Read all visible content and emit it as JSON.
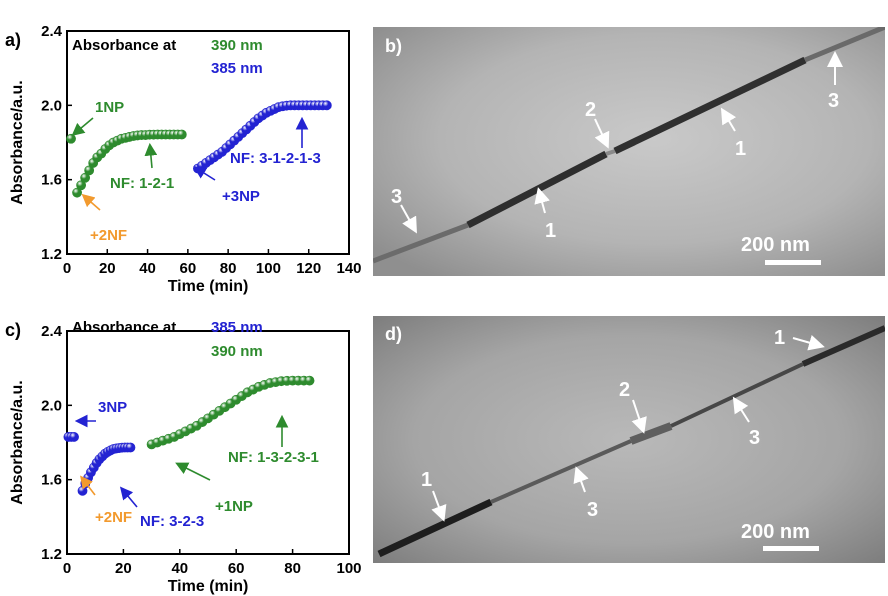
{
  "colors": {
    "green": "#2e8b2e",
    "blue": "#2323d2",
    "orange": "#f29a2e",
    "axis": "#000000",
    "white": "#ffffff"
  },
  "chart_data": [
    {
      "type": "scatter",
      "panel_label": "a)",
      "xlabel": "Time (min)",
      "ylabel": "Absorbance/a.u.",
      "xlim": [
        0,
        140
      ],
      "ylim": [
        1.2,
        2.4
      ],
      "xticks": [
        0,
        20,
        40,
        60,
        80,
        100,
        120,
        140
      ],
      "yticks": [
        1.2,
        1.6,
        2.0,
        2.4
      ],
      "legend": {
        "title": "Absorbance at",
        "entries": [
          {
            "text": "390 nm",
            "color": "#2e8b2e"
          },
          {
            "text": "385 nm",
            "color": "#2323d2"
          }
        ]
      },
      "series": [
        {
          "name": "390 nm",
          "color": "#2e8b2e",
          "x": [
            2,
            5,
            7,
            9,
            11,
            13,
            15,
            17,
            19,
            21,
            23,
            25,
            27,
            29,
            31,
            33,
            35,
            37,
            39,
            41,
            43,
            45,
            47,
            49,
            51,
            53,
            55,
            57
          ],
          "y": [
            1.82,
            1.53,
            1.57,
            1.61,
            1.65,
            1.69,
            1.72,
            1.74,
            1.765,
            1.785,
            1.8,
            1.81,
            1.82,
            1.825,
            1.83,
            1.835,
            1.838,
            1.84,
            1.84,
            1.842,
            1.842,
            1.843,
            1.843,
            1.843,
            1.843,
            1.843,
            1.843,
            1.843
          ]
        },
        {
          "name": "385 nm",
          "color": "#2323d2",
          "x": [
            65,
            67,
            69,
            71,
            73,
            75,
            77,
            79,
            81,
            83,
            85,
            87,
            89,
            91,
            93,
            95,
            97,
            99,
            101,
            103,
            105,
            107,
            109,
            111,
            113,
            115,
            117,
            119,
            121,
            123,
            125,
            127,
            129
          ],
          "y": [
            1.66,
            1.675,
            1.69,
            1.705,
            1.72,
            1.735,
            1.75,
            1.77,
            1.79,
            1.81,
            1.83,
            1.85,
            1.87,
            1.89,
            1.91,
            1.93,
            1.945,
            1.96,
            1.97,
            1.98,
            1.99,
            1.995,
            1.998,
            2.0,
            2.0,
            2.0,
            2.0,
            2.0,
            2.0,
            2.0,
            2.0,
            2.0,
            2.0
          ]
        }
      ],
      "annotations": [
        {
          "text": "1NP",
          "color": "#2e8b2e"
        },
        {
          "text": "+2NF",
          "color": "#f29a2e"
        },
        {
          "text": "NF: 1-2-1",
          "color": "#2e8b2e"
        },
        {
          "text": "+3NP",
          "color": "#2323d2"
        },
        {
          "text": "NF: 3-1-2-1-3",
          "color": "#2323d2"
        }
      ]
    },
    {
      "type": "scatter",
      "panel_label": "c)",
      "xlabel": "Time (min)",
      "ylabel": "Absorbance/a.u.",
      "xlim": [
        0,
        100
      ],
      "ylim": [
        1.2,
        2.4
      ],
      "xticks": [
        0,
        20,
        40,
        60,
        80,
        100
      ],
      "yticks": [
        1.2,
        1.6,
        2.0,
        2.4
      ],
      "legend": {
        "title": "Absorbance at",
        "entries": [
          {
            "text": "385 nm",
            "color": "#2323d2"
          },
          {
            "text": "390 nm",
            "color": "#2e8b2e"
          }
        ]
      },
      "series": [
        {
          "name": "385 nm",
          "color": "#2323d2",
          "x": [
            0.5,
            1.5,
            2.5,
            5.5,
            6.5,
            7.5,
            8.5,
            9.5,
            10.5,
            11.5,
            12.5,
            13.5,
            14.5,
            15.5,
            16.5,
            17.5,
            18.5,
            19.5,
            20.5,
            21.5,
            22.5
          ],
          "y": [
            1.83,
            1.83,
            1.83,
            1.54,
            1.58,
            1.61,
            1.64,
            1.665,
            1.69,
            1.71,
            1.725,
            1.74,
            1.75,
            1.758,
            1.765,
            1.768,
            1.77,
            1.772,
            1.773,
            1.773,
            1.773
          ]
        },
        {
          "name": "390 nm",
          "color": "#2e8b2e",
          "x": [
            30,
            32,
            34,
            36,
            38,
            40,
            42,
            44,
            46,
            48,
            50,
            52,
            54,
            56,
            58,
            60,
            62,
            64,
            66,
            68,
            70,
            72,
            74,
            76,
            78,
            80,
            82,
            84,
            86
          ],
          "y": [
            1.79,
            1.8,
            1.81,
            1.82,
            1.83,
            1.845,
            1.86,
            1.875,
            1.89,
            1.91,
            1.93,
            1.95,
            1.97,
            1.99,
            2.01,
            2.03,
            2.05,
            2.07,
            2.085,
            2.1,
            2.11,
            2.12,
            2.125,
            2.13,
            2.132,
            2.133,
            2.133,
            2.133,
            2.133
          ]
        }
      ],
      "annotations": [
        {
          "text": "3NP",
          "color": "#2323d2"
        },
        {
          "text": "+2NF",
          "color": "#f29a2e"
        },
        {
          "text": "NF: 3-2-3",
          "color": "#2323d2"
        },
        {
          "text": "+1NP",
          "color": "#2e8b2e"
        },
        {
          "text": "NF: 1-3-2-3-1",
          "color": "#2e8b2e"
        }
      ]
    }
  ],
  "images": {
    "b": {
      "panel_label": "b)",
      "labels": [
        "3",
        "1",
        "2",
        "1",
        "3"
      ],
      "scalebar_text": "200 nm"
    },
    "d": {
      "panel_label": "d)",
      "labels": [
        "1",
        "3",
        "2",
        "3",
        "1"
      ],
      "scalebar_text": "200 nm"
    }
  }
}
